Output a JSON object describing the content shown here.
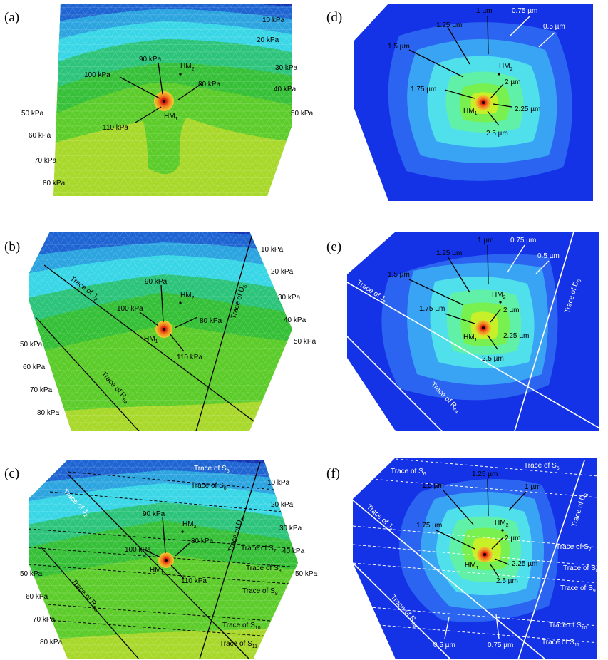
{
  "panels": [
    {
      "id": "a",
      "label": "(a)",
      "field": "pressure",
      "contours": [
        "10 kPa",
        "20 kPa",
        "30 kPa",
        "40 kPa",
        "50 kPa",
        "50 kPa",
        "60 kPa",
        "70 kPa",
        "80 kPa"
      ],
      "peak_labels": [
        "90 kPa",
        "100 kPa",
        "80 kPa",
        "110 kPa"
      ],
      "points": [
        "HM1",
        "HM2"
      ],
      "traces": []
    },
    {
      "id": "b",
      "label": "(b)",
      "field": "pressure",
      "contours": [
        "10 kPa",
        "20 kPa",
        "30 kPa",
        "40 kPa",
        "50 kPa",
        "50 kPa",
        "60 kPa",
        "70 kPa",
        "80 kPa"
      ],
      "peak_labels": [
        "90 kPa",
        "100 kPa",
        "80 kPa",
        "110 kPa"
      ],
      "points": [
        "HM1",
        "HM2"
      ],
      "traces": [
        "Trace of J2",
        "Trace of D6",
        "Trace of R6a"
      ]
    },
    {
      "id": "c",
      "label": "(c)",
      "field": "pressure",
      "contours": [
        "10 kPa",
        "20 kPa",
        "30 kPa",
        "40 kPa",
        "50 kPa",
        "50 kPa",
        "60 kPa",
        "70 kPa",
        "80 kPa"
      ],
      "peak_labels": [
        "90 kPa",
        "100 kPa",
        "80 kPa",
        "110 kPa"
      ],
      "points": [
        "HM1",
        "HM2"
      ],
      "traces": [
        "Trace of S5",
        "Trace of S6",
        "Trace of J2",
        "Trace of D6",
        "Trace of S7",
        "Trace of S8",
        "Trace of S9",
        "Trace of R6a",
        "Trace of S10",
        "Trace of S11"
      ]
    },
    {
      "id": "d",
      "label": "(d)",
      "field": "displacement",
      "contours": [
        "1 µm",
        "0.75 µm",
        "0.5 µm",
        "1.25 µm",
        "1.5 µm",
        "1.75 µm",
        "2 µm",
        "2.25 µm",
        "2.5 µm"
      ],
      "points": [
        "HM1",
        "HM2"
      ],
      "traces": []
    },
    {
      "id": "e",
      "label": "(e)",
      "field": "displacement",
      "contours": [
        "1 µm",
        "0.75 µm",
        "0.5 µm",
        "1.25 µm",
        "1.5 µm",
        "1.75 µm",
        "2 µm",
        "2.25 µm",
        "2.5 µm"
      ],
      "points": [
        "HM1",
        "HM2"
      ],
      "traces": [
        "Trace of J2",
        "Trace of D6",
        "Trace of R6a"
      ]
    },
    {
      "id": "f",
      "label": "(f)",
      "field": "displacement",
      "contours": [
        "1.25 µm",
        "1.5 µm",
        "1 µm",
        "1.75 µm",
        "2 µm",
        "2.25 µm",
        "2.5 µm",
        "0.5 µm",
        "0.75 µm"
      ],
      "points": [
        "HM1",
        "HM2"
      ],
      "traces": [
        "Trace of S5",
        "Trace of S6",
        "Trace of D6",
        "Trace of J2",
        "Trace of S7",
        "Trace of S8",
        "Trace of S9",
        "Trace of R6a",
        "Trace of S10",
        "Trace of S11"
      ]
    }
  ],
  "colors": {
    "pressure_bands": [
      "#1434b4",
      "#1e64d2",
      "#2ba4e0",
      "#38d6e6",
      "#2fd0b0",
      "#2cc47a",
      "#36c038",
      "#5ccc2a",
      "#a8d82a"
    ],
    "disp_bands": [
      "#1432e6",
      "#2a64f0",
      "#3aa4f4",
      "#50e0ec",
      "#60f0a8",
      "#78f050",
      "#c8f028",
      "#f0d020",
      "#f06010"
    ],
    "hotspot": [
      "#f0d030",
      "#f08020",
      "#e02010",
      "#c00000"
    ],
    "trace_dark": "#000000",
    "trace_light": "#ffffff"
  }
}
